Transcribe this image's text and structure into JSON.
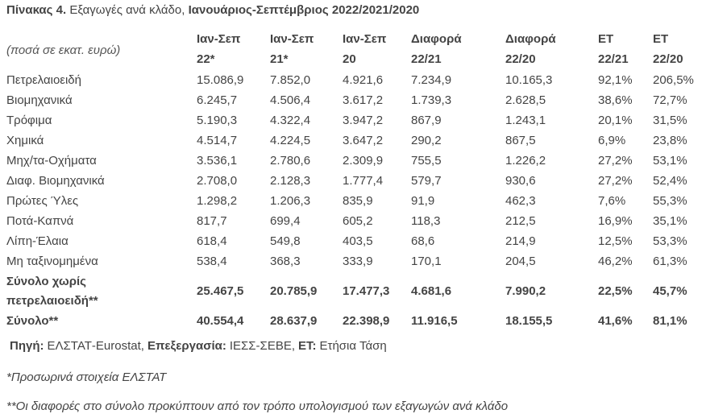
{
  "title": {
    "label": "Πίνακας 4.",
    "text": "Εξαγωγές ανά κλάδο,",
    "period": "Ιανουάριος-Σεπτέμβριος 2022/2021/2020"
  },
  "table": {
    "unit_note": "(ποσά σε εκατ. ευρώ)",
    "columns": [
      [
        "Ιαν-Σεπ",
        "22*"
      ],
      [
        "Ιαν-Σεπ",
        "21*"
      ],
      [
        "Ιαν-Σεπ",
        "20"
      ],
      [
        "Διαφορά",
        "22/21"
      ],
      [
        "Διαφορά",
        "22/20"
      ],
      [
        "ΕΤ",
        "22/21"
      ],
      [
        "ΕΤ",
        "22/20"
      ]
    ],
    "rows": [
      {
        "label": [
          "Πετρελαιοειδή"
        ],
        "cells": [
          "15.086,9",
          "7.852,0",
          "4.921,6",
          "7.234,9",
          "10.165,3",
          "92,1%",
          "206,5%"
        ]
      },
      {
        "label": [
          "Βιομηχανικά"
        ],
        "cells": [
          "6.245,7",
          "4.506,4",
          "3.617,2",
          "1.739,3",
          "2.628,5",
          "38,6%",
          "72,7%"
        ]
      },
      {
        "label": [
          "Τρόφιμα"
        ],
        "cells": [
          "5.190,3",
          "4.322,4",
          "3.947,2",
          "867,9",
          "1.243,1",
          "20,1%",
          "31,5%"
        ]
      },
      {
        "label": [
          "Χημικά"
        ],
        "cells": [
          "4.514,7",
          "4.224,5",
          "3.647,2",
          "290,2",
          "867,5",
          "6,9%",
          "23,8%"
        ]
      },
      {
        "label": [
          "Μηχ/τα-Οχήματα"
        ],
        "cells": [
          "3.536,1",
          "2.780,6",
          "2.309,9",
          "755,5",
          "1.226,2",
          "27,2%",
          "53,1%"
        ]
      },
      {
        "label": [
          "Διαφ. Βιομηχανικά"
        ],
        "cells": [
          "2.708,0",
          "2.128,3",
          "1.777,4",
          "579,7",
          "930,6",
          "27,2%",
          "52,4%"
        ]
      },
      {
        "label": [
          "Πρώτες Ύλες"
        ],
        "cells": [
          "1.298,2",
          "1.206,3",
          "835,9",
          "91,9",
          "462,3",
          "7,6%",
          "55,3%"
        ]
      },
      {
        "label": [
          "Ποτά-Καπνά"
        ],
        "cells": [
          "817,7",
          "699,4",
          "605,2",
          "118,3",
          "212,5",
          "16,9%",
          "35,1%"
        ]
      },
      {
        "label": [
          "Λίπη-Έλαια"
        ],
        "cells": [
          "618,4",
          "549,8",
          "403,5",
          "68,6",
          "214,9",
          "12,5%",
          "53,3%"
        ]
      },
      {
        "label": [
          "Μη ταξινομημένα"
        ],
        "cells": [
          "538,4",
          "368,3",
          "333,9",
          "170,1",
          "204,5",
          "46,2%",
          "61,3%"
        ]
      }
    ],
    "totals": [
      {
        "label": [
          "Σύνολο χωρίς",
          "πετρελαιοειδή**"
        ],
        "cells": [
          "25.467,5",
          "20.785,9",
          "17.477,3",
          "4.681,6",
          "7.990,2",
          "22,5%",
          "45,7%"
        ]
      },
      {
        "label": [
          "Σύνολο**"
        ],
        "cells": [
          "40.554,4",
          "28.637,9",
          "22.398,9",
          "11.916,5",
          "18.155,5",
          "41,6%",
          "81,1%"
        ]
      }
    ]
  },
  "source": [
    {
      "label": "Πηγή:",
      "text": "ΕΛΣΤΑΤ-Eurostat,"
    },
    {
      "label": "Επεξεργασία:",
      "text": "ΙΕΣΣ-ΣΕΒΕ,"
    },
    {
      "label": "ΕΤ:",
      "text": "Ετήσια Τάση"
    }
  ],
  "notes": [
    "*Προσωρινά στοιχεία ΕΛΣΤΑΤ",
    "**Οι διαφορές στο σύνολο προκύπτουν από τον τρόπο υπολογισμού των εξαγωγών ανά κλάδο"
  ]
}
